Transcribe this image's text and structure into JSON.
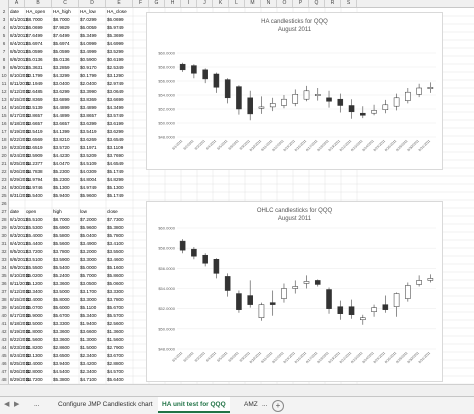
{
  "columns": [
    "A",
    "B",
    "C",
    "D",
    "E",
    "F",
    "G",
    "H",
    "I",
    "J",
    "K",
    "L",
    "M",
    "N",
    "O",
    "P",
    "Q",
    "R",
    "S"
  ],
  "row_numbers": [
    2,
    3,
    4,
    5,
    6,
    7,
    8,
    9,
    10,
    11,
    12,
    13,
    14,
    15,
    16,
    17,
    18,
    19,
    20,
    21,
    22,
    23,
    24,
    25,
    26,
    27,
    28,
    29,
    30,
    31,
    32,
    33,
    34,
    35,
    36,
    37,
    38,
    39,
    40,
    41,
    42,
    43,
    44,
    45,
    46,
    47,
    48
  ],
  "ha_table": {
    "headers": [
      "date",
      "HA_open",
      "HA_high",
      "HA_low",
      "HA_close"
    ],
    "rows": [
      [
        "8/1/2011",
        "$8.7000",
        "$8.7000",
        "$7.0299",
        "$6.0699"
      ],
      [
        "8/2/2011",
        "$6.0699",
        "$7.9829",
        "$6.0059",
        "$5.9749"
      ],
      [
        "8/3/2011",
        "$7.6499",
        "$7.6499",
        "$5.3499",
        "$5.3699"
      ],
      [
        "8/4/2011",
        "$5.6974",
        "$5.6974",
        "$4.0999",
        "$4.6999"
      ],
      [
        "8/5/2011",
        "$5.0599",
        "$5.0599",
        "$3.4999",
        "$3.5299"
      ],
      [
        "8/8/2011",
        "$5.0136",
        "$5.0136",
        "$0.5900",
        "$0.6199"
      ],
      [
        "8/9/2011",
        "$5.3631",
        "$3.2859",
        "$0.9170",
        "$2.5349"
      ],
      [
        "8/10/2011",
        "$0.1799",
        "$4.3299",
        "$0.1799",
        "$3.1290"
      ],
      [
        "8/11/2011",
        "$2.1949",
        "$3.0400",
        "$2.0400",
        "$2.9749"
      ],
      [
        "8/12/2011",
        "$2.6485",
        "$3.6299",
        "$3.3990",
        "$3.0649"
      ],
      [
        "8/15/2011",
        "$2.8369",
        "$3.6899",
        "$3.8369",
        "$3.6699"
      ],
      [
        "8/16/2011",
        "$3.5139",
        "$4.4899",
        "$3.4899",
        "$4.3499"
      ],
      [
        "8/17/2011",
        "$3.8657",
        "$4.4899",
        "$3.8657",
        "$3.5749"
      ],
      [
        "8/18/2011",
        "$3.6657",
        "$3.6657",
        "$3.6399",
        "$3.6199"
      ],
      [
        "8/19/2011",
        "$3.5419",
        "$4.1399",
        "$3.5419",
        "$3.6299"
      ],
      [
        "8/22/2011",
        "$3.6569",
        "$3.8210",
        "$3.6269",
        "$3.6549"
      ],
      [
        "8/23/2011",
        "$3.6519",
        "$3.5720",
        "$3.1971",
        "$3.1109"
      ],
      [
        "8/24/2011",
        "$3.5909",
        "$4.4230",
        "$3.5209",
        "$3.7690"
      ],
      [
        "8/25/2011",
        "$4.2377",
        "$4.0470",
        "$4.5109",
        "$4.6549"
      ],
      [
        "8/26/2011",
        "$4.7838",
        "$5.2300",
        "$4.0309",
        "$5.1749"
      ],
      [
        "8/29/2011",
        "$4.9794",
        "$5.2300",
        "$4.8004",
        "$4.8299"
      ],
      [
        "8/30/2011",
        "$4.9746",
        "$5.1300",
        "$4.9749",
        "$5.1300"
      ],
      [
        "8/31/2011",
        "$5.5400",
        "$5.9400",
        "$5.9600",
        "$5.1749"
      ]
    ]
  },
  "ohlc_table": {
    "headers": [
      "date",
      "open",
      "high",
      "low",
      "close"
    ],
    "rows": [
      [
        "8/1/2011",
        "$5.5100",
        "$8.7000",
        "$7.2000",
        "$7.7300"
      ],
      [
        "8/2/2011",
        "$5.5300",
        "$5.6900",
        "$5.9600",
        "$5.3800"
      ],
      [
        "8/3/2011",
        "$5.4000",
        "$5.5800",
        "$5.0400",
        "$5.7800"
      ],
      [
        "8/4/2011",
        "$5.4400",
        "$5.5600",
        "$3.4900",
        "$3.4100"
      ],
      [
        "8/5/2011",
        "$3.7200",
        "$3.7800",
        "$3.2000",
        "$3.5500"
      ],
      [
        "8/8/2011",
        "$3.5100",
        "$3.5900",
        "$3.3000",
        "$3.4600"
      ],
      [
        "8/9/2011",
        "$5.5500",
        "$5.5400",
        "$5.0000",
        "$5.1600"
      ],
      [
        "8/10/2011",
        "$5.0200",
        "$5.2400",
        "$5.7000",
        "$5.8600"
      ],
      [
        "8/11/2011",
        "$5.1200",
        "$3.3600",
        "$3.0500",
        "$5.0600"
      ],
      [
        "8/12/2011",
        "$3.3400",
        "$3.5000",
        "$3.1700",
        "$3.3300"
      ],
      [
        "8/15/2011",
        "$3.4000",
        "$5.8000",
        "$3.3000",
        "$3.7800"
      ],
      [
        "8/16/2011",
        "$5.0700",
        "$5.6000",
        "$5.1100",
        "$5.6700"
      ],
      [
        "8/17/2011",
        "$5.9000",
        "$5.6700",
        "$5.3400",
        "$5.5700"
      ],
      [
        "8/18/2011",
        "$3.5000",
        "$3.3300",
        "$1.9400",
        "$2.5600"
      ],
      [
        "8/19/2011",
        "$1.8000",
        "$3.3600",
        "$3.6600",
        "$1.3600"
      ],
      [
        "8/22/2011",
        "$1.5600",
        "$3.3600",
        "$1.3000",
        "$1.5600"
      ],
      [
        "8/23/2011",
        "$1.8200",
        "$2.8600",
        "$1.5000",
        "$2.7900"
      ],
      [
        "8/24/2011",
        "$3.1300",
        "$3.6500",
        "$2.3400",
        "$3.6700"
      ],
      [
        "8/25/2011",
        "$3.4000",
        "$3.9400",
        "$3.4200",
        "$2.8800"
      ],
      [
        "8/26/2011",
        "$2.8000",
        "$4.5400",
        "$2.3400",
        "$4.5700"
      ],
      [
        "8/29/2011",
        "$4.7200",
        "$5.3800",
        "$4.7100",
        "$5.6400"
      ],
      [
        "8/30/2011",
        "$5.7600",
        "$5.8500",
        "$4.6700",
        "$5.3400"
      ],
      [
        "8/31/2011",
        "$5.3300",
        "$5.4400",
        "$5.1500",
        "$5.7700"
      ]
    ]
  },
  "chart_data": [
    {
      "type": "candlestick",
      "title": "HA candlesticks for QQQ",
      "subtitle": "August 2011",
      "ylim": [
        48,
        62
      ],
      "yticks": [
        "$48.0000",
        "$50.0000",
        "$52.0000",
        "$54.0000",
        "$56.0000",
        "$58.0000",
        "$60.0000"
      ],
      "categories": [
        "8/1/2011",
        "8/2/2011",
        "8/3/2011",
        "8/4/2011",
        "8/5/2011",
        "8/8/2011",
        "8/9/2011",
        "8/10/2011",
        "8/11/2011",
        "8/12/2011",
        "8/15/2011",
        "8/16/2011",
        "8/17/2011",
        "8/18/2011",
        "8/19/2011",
        "8/22/2011",
        "8/23/2011",
        "8/24/2011",
        "8/25/2011",
        "8/26/2011",
        "8/29/2011",
        "8/30/2011",
        "8/31/2011"
      ],
      "open": [
        58.4,
        58.2,
        57.6,
        57.0,
        56.2,
        55.2,
        53.6,
        52.1,
        52.3,
        52.5,
        52.8,
        53.4,
        53.9,
        53.6,
        53.4,
        52.5,
        51.4,
        51.4,
        51.9,
        52.4,
        53.2,
        54.1,
        54.9
      ],
      "high": [
        58.6,
        58.4,
        57.8,
        57.2,
        56.4,
        55.4,
        54.6,
        53.8,
        53.6,
        54.0,
        54.8,
        55.3,
        55.0,
        54.6,
        54.2,
        53.4,
        52.4,
        52.6,
        53.3,
        54.2,
        55.0,
        55.6,
        55.8
      ],
      "low": [
        57.3,
        56.4,
        55.7,
        54.3,
        52.8,
        51.2,
        50.4,
        51.3,
        51.7,
        52.1,
        52.4,
        53.1,
        53.2,
        52.2,
        51.5,
        50.6,
        50.7,
        51.1,
        51.4,
        51.8,
        52.8,
        53.7,
        54.3
      ],
      "close": [
        57.6,
        57.1,
        56.3,
        55.1,
        53.6,
        52.0,
        51.3,
        52.3,
        52.8,
        53.4,
        54.1,
        54.6,
        54.1,
        53.1,
        52.5,
        51.6,
        51.1,
        51.8,
        52.6,
        53.6,
        54.4,
        55.0,
        55.1
      ]
    },
    {
      "type": "candlestick",
      "title": "OHLC candlesticks for QQQ",
      "subtitle": "August 2011",
      "ylim": [
        48,
        60
      ],
      "yticks": [
        "$48.0000",
        "$50.0000",
        "$52.0000",
        "$54.0000",
        "$56.0000",
        "$58.0000",
        "$60.0000"
      ],
      "categories": [
        "8/1/2011",
        "8/2/2011",
        "8/3/2011",
        "8/4/2011",
        "8/5/2011",
        "8/8/2011",
        "8/9/2011",
        "8/10/2011",
        "8/11/2011",
        "8/12/2011",
        "8/15/2011",
        "8/16/2011",
        "8/17/2011",
        "8/18/2011",
        "8/19/2011",
        "8/22/2011",
        "8/23/2011",
        "8/24/2011",
        "8/25/2011",
        "8/26/2011",
        "8/29/2011",
        "8/30/2011",
        "8/31/2011"
      ],
      "open": [
        58.7,
        57.9,
        57.3,
        56.9,
        55.2,
        53.5,
        53.3,
        51.1,
        52.6,
        53.0,
        54.0,
        54.5,
        54.8,
        53.9,
        52.2,
        52.2,
        50.9,
        51.7,
        52.4,
        52.2,
        53.0,
        54.4,
        54.8
      ],
      "high": [
        58.9,
        58.1,
        57.5,
        57.0,
        55.5,
        53.8,
        54.8,
        52.6,
        53.8,
        54.5,
        54.8,
        55.3,
        54.9,
        54.1,
        52.8,
        52.9,
        51.4,
        52.4,
        53.3,
        53.6,
        54.6,
        55.3,
        55.4
      ],
      "low": [
        57.5,
        56.9,
        56.2,
        55.0,
        53.2,
        51.6,
        52.1,
        50.8,
        51.3,
        52.6,
        53.5,
        54.0,
        54.2,
        51.5,
        50.9,
        51.0,
        50.4,
        51.2,
        51.6,
        51.2,
        52.7,
        54.2,
        54.6
      ],
      "close": [
        57.8,
        57.2,
        56.5,
        55.5,
        53.8,
        51.9,
        52.4,
        52.4,
        52.4,
        54.0,
        54.2,
        54.7,
        54.4,
        52.0,
        51.5,
        51.4,
        51.1,
        52.1,
        51.9,
        53.5,
        54.3,
        54.8,
        55.0
      ]
    }
  ],
  "tabs": {
    "prev": "...",
    "sheet1": "Configure JMP Candlestick chart",
    "sheet2": "HA unit test for QQQ",
    "sheet3": "AMZ",
    "more": "...",
    "add": "+"
  }
}
